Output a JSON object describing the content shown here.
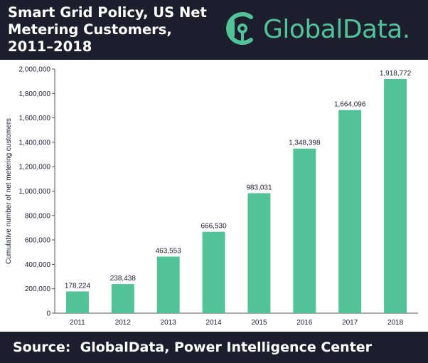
{
  "header": {
    "title": "Smart Grid Policy, US Net\nMetering Customers,\n2011–2018",
    "logo_text": "GlobalData."
  },
  "footer": {
    "source_label": "Source:",
    "source_text": "GlobalData, Power Intelligence Center"
  },
  "colors": {
    "header_bg": "#1c1e2d",
    "bar": "#52c298",
    "logo": "#52c298"
  },
  "chart_data": {
    "type": "bar",
    "categories": [
      "2011",
      "2012",
      "2013",
      "2014",
      "2015",
      "2016",
      "2017",
      "2018"
    ],
    "values": [
      178224,
      238438,
      463553,
      666530,
      983031,
      1348398,
      1664096,
      1918772
    ],
    "value_labels": [
      "178,224",
      "238,438",
      "463,553",
      "666,530",
      "983,031",
      "1,348,398",
      "1,664,096",
      "1,918,772"
    ],
    "ylabel": "Cumulative number of net metering customers",
    "ylim": [
      0,
      2000000
    ],
    "yticks": [
      0,
      200000,
      400000,
      600000,
      800000,
      1000000,
      1200000,
      1400000,
      1600000,
      1800000,
      2000000
    ],
    "ytick_labels": [
      "0",
      "200,000",
      "400,000",
      "600,000",
      "800,000",
      "1,000,000",
      "1,200,000",
      "1,400,000",
      "1,600,000",
      "1,800,000",
      "2,000,000"
    ],
    "grid": false,
    "legend": "none"
  }
}
